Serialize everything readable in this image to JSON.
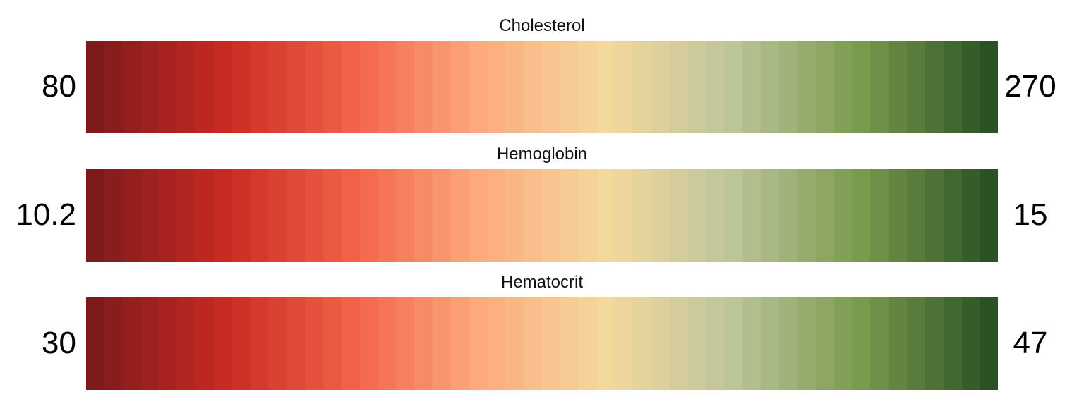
{
  "chart_data": [
    {
      "type": "heatmap",
      "title": "Cholesterol",
      "min_label": "80",
      "max_label": "270",
      "range": [
        80,
        270
      ],
      "colorscale": [
        "#7f1a1c",
        "#c62a22",
        "#f26148",
        "#fda97d",
        "#f4d99d",
        "#bcc49a",
        "#7a9a4e",
        "#2c5224"
      ],
      "swatch_count": 50
    },
    {
      "type": "heatmap",
      "title": "Hemoglobin",
      "min_label": "10.2",
      "max_label": "15",
      "range": [
        10.2,
        15
      ],
      "colorscale": [
        "#7f1a1c",
        "#c62a22",
        "#f26148",
        "#fda97d",
        "#f4d99d",
        "#bcc49a",
        "#7a9a4e",
        "#2c5224"
      ],
      "swatch_count": 50
    },
    {
      "type": "heatmap",
      "title": "Hematocrit",
      "min_label": "30",
      "max_label": "47",
      "range": [
        30,
        47
      ],
      "colorscale": [
        "#7f1a1c",
        "#c62a22",
        "#f26148",
        "#fda97d",
        "#f4d99d",
        "#bcc49a",
        "#7a9a4e",
        "#2c5224"
      ],
      "swatch_count": 50
    }
  ]
}
